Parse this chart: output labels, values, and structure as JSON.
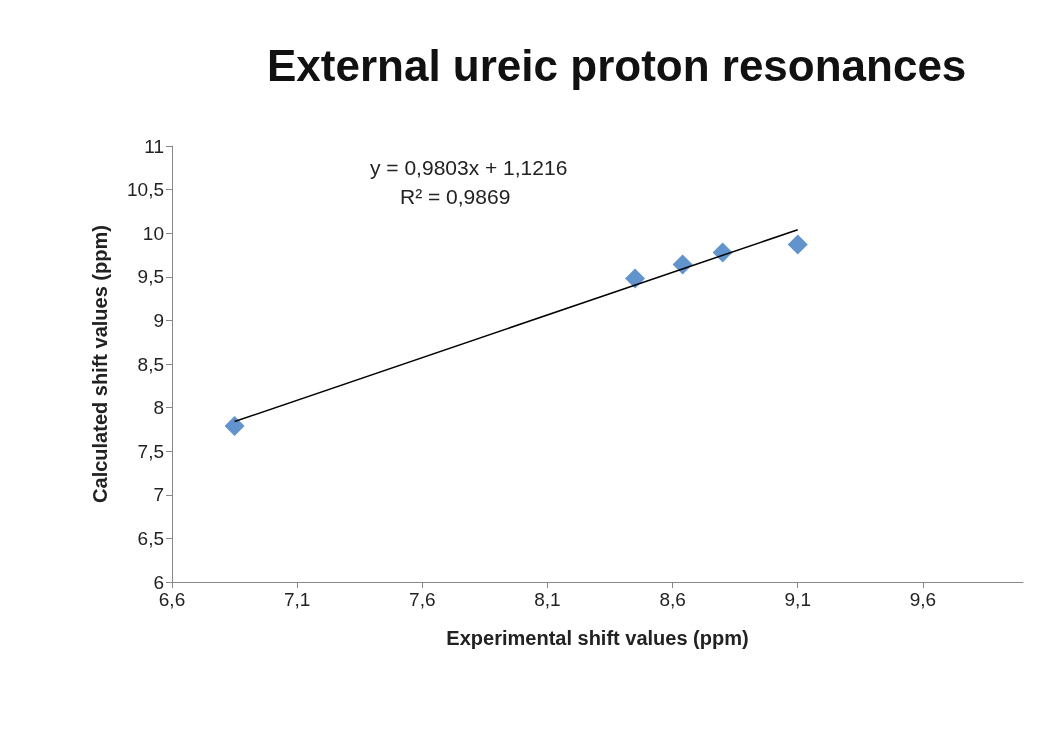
{
  "chart_data": {
    "type": "scatter",
    "title": "External ureic proton resonances",
    "xlabel": "Experimental shift values (ppm)",
    "ylabel": "Calculated shift values (ppm)",
    "series": [
      {
        "color": "#3a78c0",
        "marker": "diamond",
        "x": [
          6.85,
          8.45,
          8.64,
          8.8,
          9.1
        ],
        "values": [
          7.79,
          9.48,
          9.64,
          9.78,
          9.87
        ]
      },
      {
        "type": "line",
        "color": "#000000",
        "marker": "none",
        "line_style": "solid",
        "x": [
          6.85,
          9.1
        ],
        "values": [
          7.84,
          10.04
        ]
      }
    ],
    "annotations": [
      "y = 0,9803x + 1,1216",
      "R² = 0,9869"
    ],
    "xlim": [
      6.6,
      10.0
    ],
    "xticks": [
      {
        "value": 6.6,
        "label": "6,6"
      },
      {
        "value": 7.1,
        "label": "7,1"
      },
      {
        "value": 7.6,
        "label": "7,6"
      },
      {
        "value": 8.1,
        "label": "8,1"
      },
      {
        "value": 8.6,
        "label": "8,6"
      },
      {
        "value": 9.1,
        "label": "9,1"
      },
      {
        "value": 9.6,
        "label": "9,6"
      }
    ],
    "ylim": [
      6,
      11
    ],
    "yticks": [
      6,
      {
        "value": 6.5,
        "label": "6,5"
      },
      7,
      {
        "value": 7.5,
        "label": "7,5"
      },
      8,
      {
        "value": 8.5,
        "label": "8,5"
      },
      9,
      {
        "value": 9.5,
        "label": "9,5"
      },
      10,
      {
        "value": 10.5,
        "label": "10,5"
      },
      11
    ],
    "grid": false
  }
}
